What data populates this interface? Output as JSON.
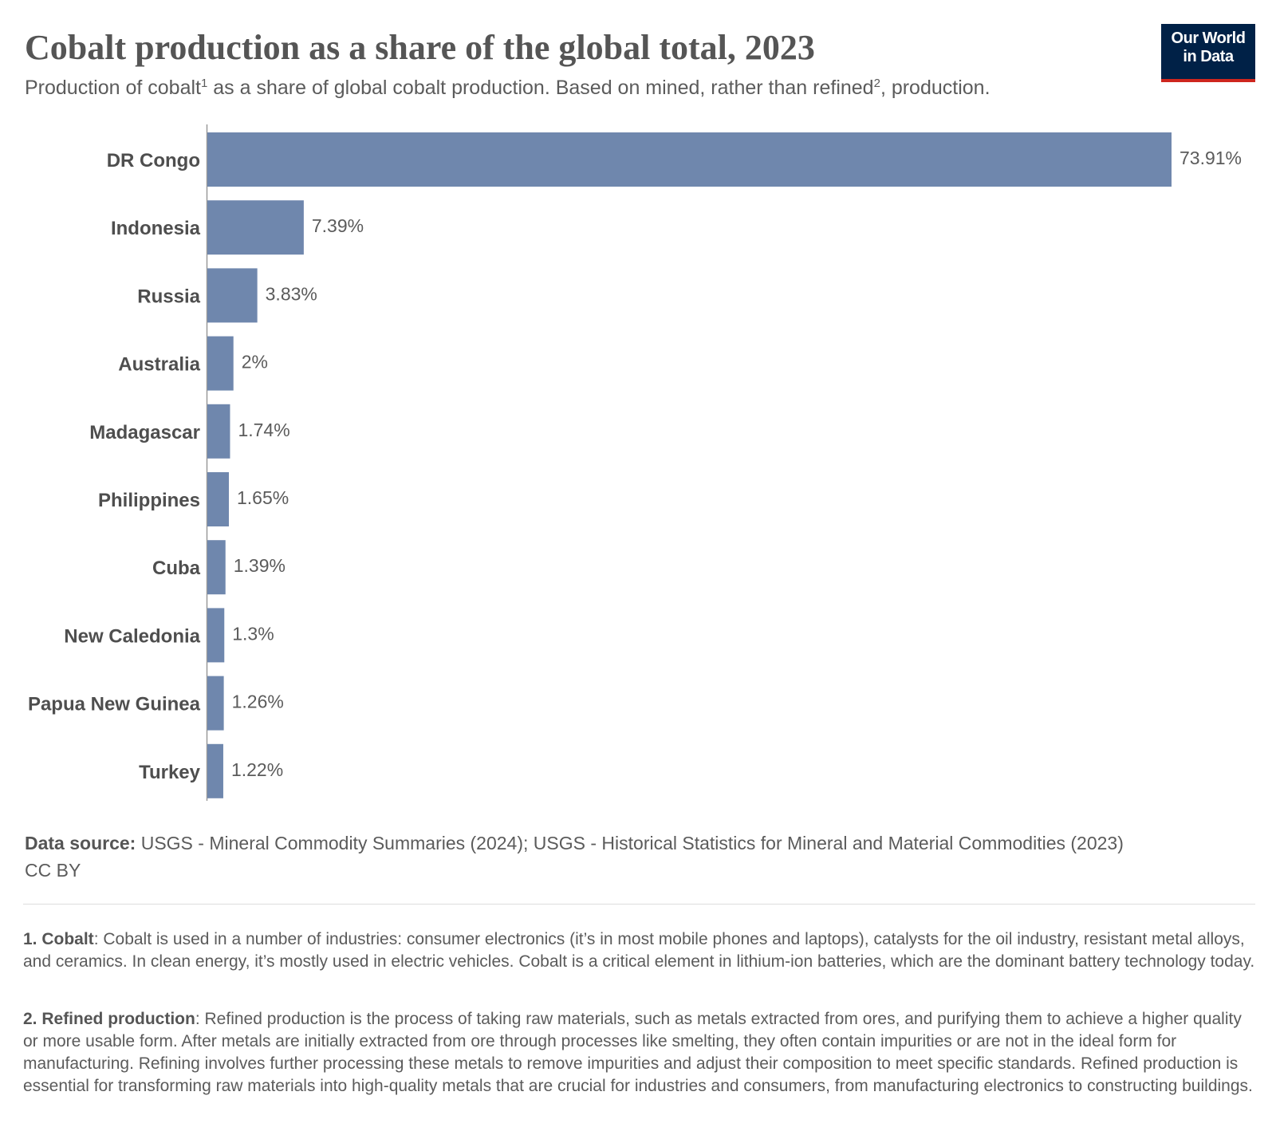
{
  "header": {
    "title": "Cobalt production as a share of the global total, 2023",
    "subtitle_part1": "Production of cobalt",
    "subtitle_sup1": "1",
    "subtitle_part2": " as a share of global cobalt production. Based on mined, rather than refined",
    "subtitle_sup2": "2",
    "subtitle_part3": ", production."
  },
  "logo": {
    "line1": "Our World",
    "line2": "in Data",
    "bg_color": "#002147",
    "accent_color": "#ce261e"
  },
  "chart_data": {
    "type": "bar",
    "orientation": "horizontal",
    "title": "Cobalt production as a share of the global total, 2023",
    "xlabel": "",
    "ylabel": "",
    "unit": "%",
    "xlim": [
      0,
      73.91
    ],
    "grid": false,
    "bar_color": "#6f87ad",
    "categories": [
      "DR Congo",
      "Indonesia",
      "Russia",
      "Australia",
      "Madagascar",
      "Philippines",
      "Cuba",
      "New Caledonia",
      "Papua New Guinea",
      "Turkey"
    ],
    "values": [
      73.91,
      7.39,
      3.83,
      2,
      1.74,
      1.65,
      1.39,
      1.3,
      1.26,
      1.22
    ],
    "value_labels": [
      "73.91%",
      "7.39%",
      "3.83%",
      "2%",
      "1.74%",
      "1.65%",
      "1.39%",
      "1.3%",
      "1.26%",
      "1.22%"
    ]
  },
  "footer": {
    "source_label": "Data source:",
    "source_text": " USGS - Mineral Commodity Summaries (2024); USGS - Historical Statistics for Mineral and Material Commodities (2023)",
    "license": "CC BY",
    "notes": [
      {
        "label": "1. Cobalt",
        "text": ": Cobalt is used in a number of industries: consumer electronics (it’s in most mobile phones and laptops), catalysts for the oil industry, resistant metal alloys, and ceramics. In clean energy, it’s mostly used in electric vehicles. Cobalt is a critical element in lithium-ion batteries, which are the dominant battery technology today."
      },
      {
        "label": "2. Refined production",
        "text": ": Refined production is the process of taking raw materials, such as metals extracted from ores, and purifying them to achieve a higher quality or more usable form. After metals are initially extracted from ore through processes like smelting, they often contain impurities or are not in the ideal form for manufacturing. Refining involves further processing these metals to remove impurities and adjust their composition to meet specific standards. Refined production is essential for transforming raw materials into high-quality metals that are crucial for industries and consumers, from manufacturing electronics to constructing buildings."
      }
    ]
  }
}
